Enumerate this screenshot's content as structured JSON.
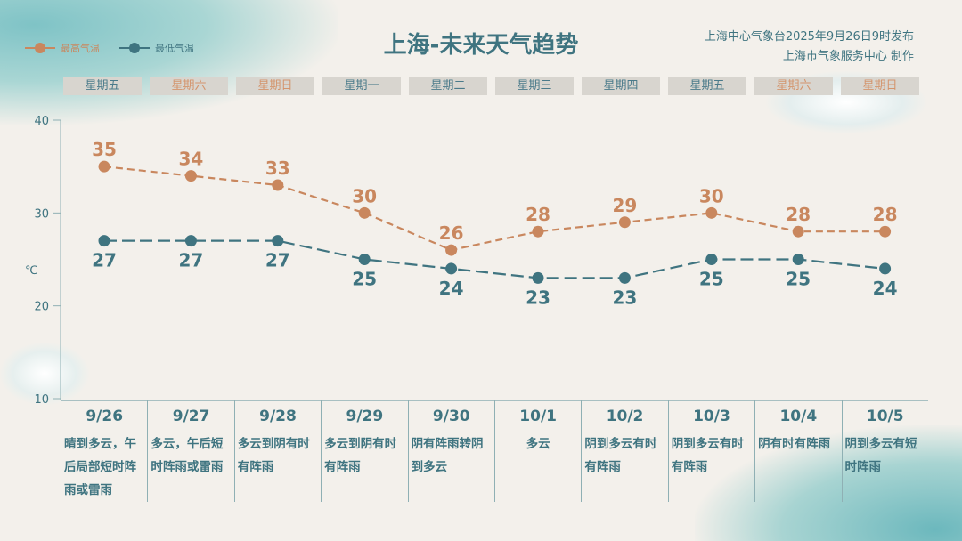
{
  "header": {
    "title": "上海-未来天气趋势",
    "publisher": "上海中心气象台2025年9月26日9时发布",
    "producer": "上海市气象服务中心 制作"
  },
  "legend": {
    "high": "最高气温",
    "low": "最低气温"
  },
  "colors": {
    "high": "#c9875e",
    "low": "#3f7480",
    "weekend": "#d4946c",
    "weekday": "#4a7a8a"
  },
  "weekdays": [
    "星期五",
    "星期六",
    "星期日",
    "星期一",
    "星期二",
    "星期三",
    "星期四",
    "星期五",
    "星期六",
    "星期日"
  ],
  "weekend_flags": [
    false,
    true,
    true,
    false,
    false,
    false,
    false,
    false,
    true,
    true
  ],
  "chart_data": {
    "type": "line",
    "categories": [
      "9/26",
      "9/27",
      "9/28",
      "9/29",
      "9/30",
      "10/1",
      "10/2",
      "10/3",
      "10/4",
      "10/5"
    ],
    "series": [
      {
        "name": "最高气温",
        "values": [
          35,
          34,
          33,
          30,
          26,
          28,
          29,
          30,
          28,
          28
        ]
      },
      {
        "name": "最低气温",
        "values": [
          27,
          27,
          27,
          25,
          24,
          23,
          23,
          25,
          25,
          24
        ]
      }
    ],
    "ylabel": "℃",
    "ylim": [
      10,
      40
    ],
    "yticks": [
      "10",
      "20",
      "30",
      "40"
    ],
    "grid": false,
    "legend_position": "top-left"
  },
  "weather": [
    "晴到多云，午后局部短时阵雨或雷雨",
    "多云，午后短时阵雨或雷雨",
    "多云到阴有时有阵雨",
    "多云到阴有时有阵雨",
    "阴有阵雨转阴到多云",
    "多云",
    "阴到多云有时有阵雨",
    "阴到多云有时有阵雨",
    "阴有时有阵雨",
    "阴到多云有短时阵雨"
  ]
}
